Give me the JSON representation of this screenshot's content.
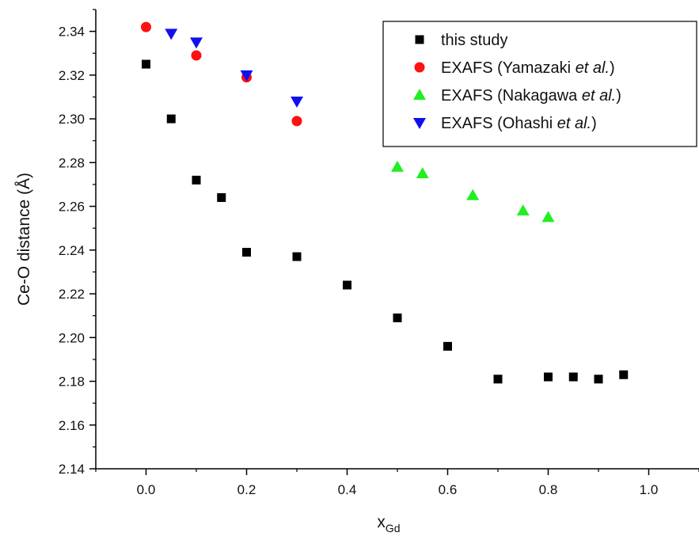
{
  "chart_data": {
    "type": "scatter",
    "title": "",
    "xlabel": "x",
    "xlabel_sub": "Gd",
    "ylabel": "Ce-O distance (Å)",
    "xlim": [
      -0.1,
      1.1
    ],
    "ylim": [
      2.14,
      2.35
    ],
    "x_ticks": [
      0.0,
      0.2,
      0.4,
      0.6,
      0.8,
      1.0
    ],
    "x_tick_labels": [
      "0.0",
      "0.2",
      "0.4",
      "0.6",
      "0.8",
      "1.0"
    ],
    "y_ticks": [
      2.14,
      2.16,
      2.18,
      2.2,
      2.22,
      2.24,
      2.26,
      2.28,
      2.3,
      2.32,
      2.34
    ],
    "y_tick_labels": [
      "2.14",
      "2.16",
      "2.18",
      "2.20",
      "2.22",
      "2.24",
      "2.26",
      "2.28",
      "2.30",
      "2.32",
      "2.34"
    ],
    "grid": false,
    "legend_position": "top-right",
    "series": [
      {
        "name": "this study",
        "name_parts": [
          {
            "text": "this study",
            "italic": false
          }
        ],
        "marker": "square",
        "color": "#000000",
        "x": [
          0.0,
          0.05,
          0.1,
          0.15,
          0.2,
          0.3,
          0.4,
          0.5,
          0.6,
          0.7,
          0.8,
          0.85,
          0.9,
          0.95
        ],
        "y": [
          2.325,
          2.3,
          2.272,
          2.264,
          2.239,
          2.237,
          2.224,
          2.209,
          2.196,
          2.181,
          2.182,
          2.182,
          2.181,
          2.183
        ]
      },
      {
        "name": "EXAFS (Yamazaki et al.)",
        "name_parts": [
          {
            "text": "EXAFS (Yamazaki ",
            "italic": false
          },
          {
            "text": "et al.",
            "italic": true
          },
          {
            "text": ")",
            "italic": false
          }
        ],
        "marker": "circle",
        "color": "#ff1010",
        "x": [
          0.0,
          0.1,
          0.2,
          0.3
        ],
        "y": [
          2.342,
          2.329,
          2.319,
          2.299
        ]
      },
      {
        "name": "EXAFS (Nakagawa et al.)",
        "name_parts": [
          {
            "text": "EXAFS (Nakagawa ",
            "italic": false
          },
          {
            "text": "et al.",
            "italic": true
          },
          {
            "text": ")",
            "italic": false
          }
        ],
        "marker": "triangle-up",
        "color": "#22ee22",
        "x": [
          0.5,
          0.55,
          0.65,
          0.75,
          0.8
        ],
        "y": [
          2.278,
          2.275,
          2.265,
          2.258,
          2.255
        ]
      },
      {
        "name": "EXAFS (Ohashi et al.)",
        "name_parts": [
          {
            "text": "EXAFS (Ohashi ",
            "italic": false
          },
          {
            "text": "et al.",
            "italic": true
          },
          {
            "text": ")",
            "italic": false
          }
        ],
        "marker": "triangle-down",
        "color": "#1010ee",
        "x": [
          0.05,
          0.1,
          0.2,
          0.3
        ],
        "y": [
          2.339,
          2.335,
          2.32,
          2.308
        ]
      }
    ]
  }
}
